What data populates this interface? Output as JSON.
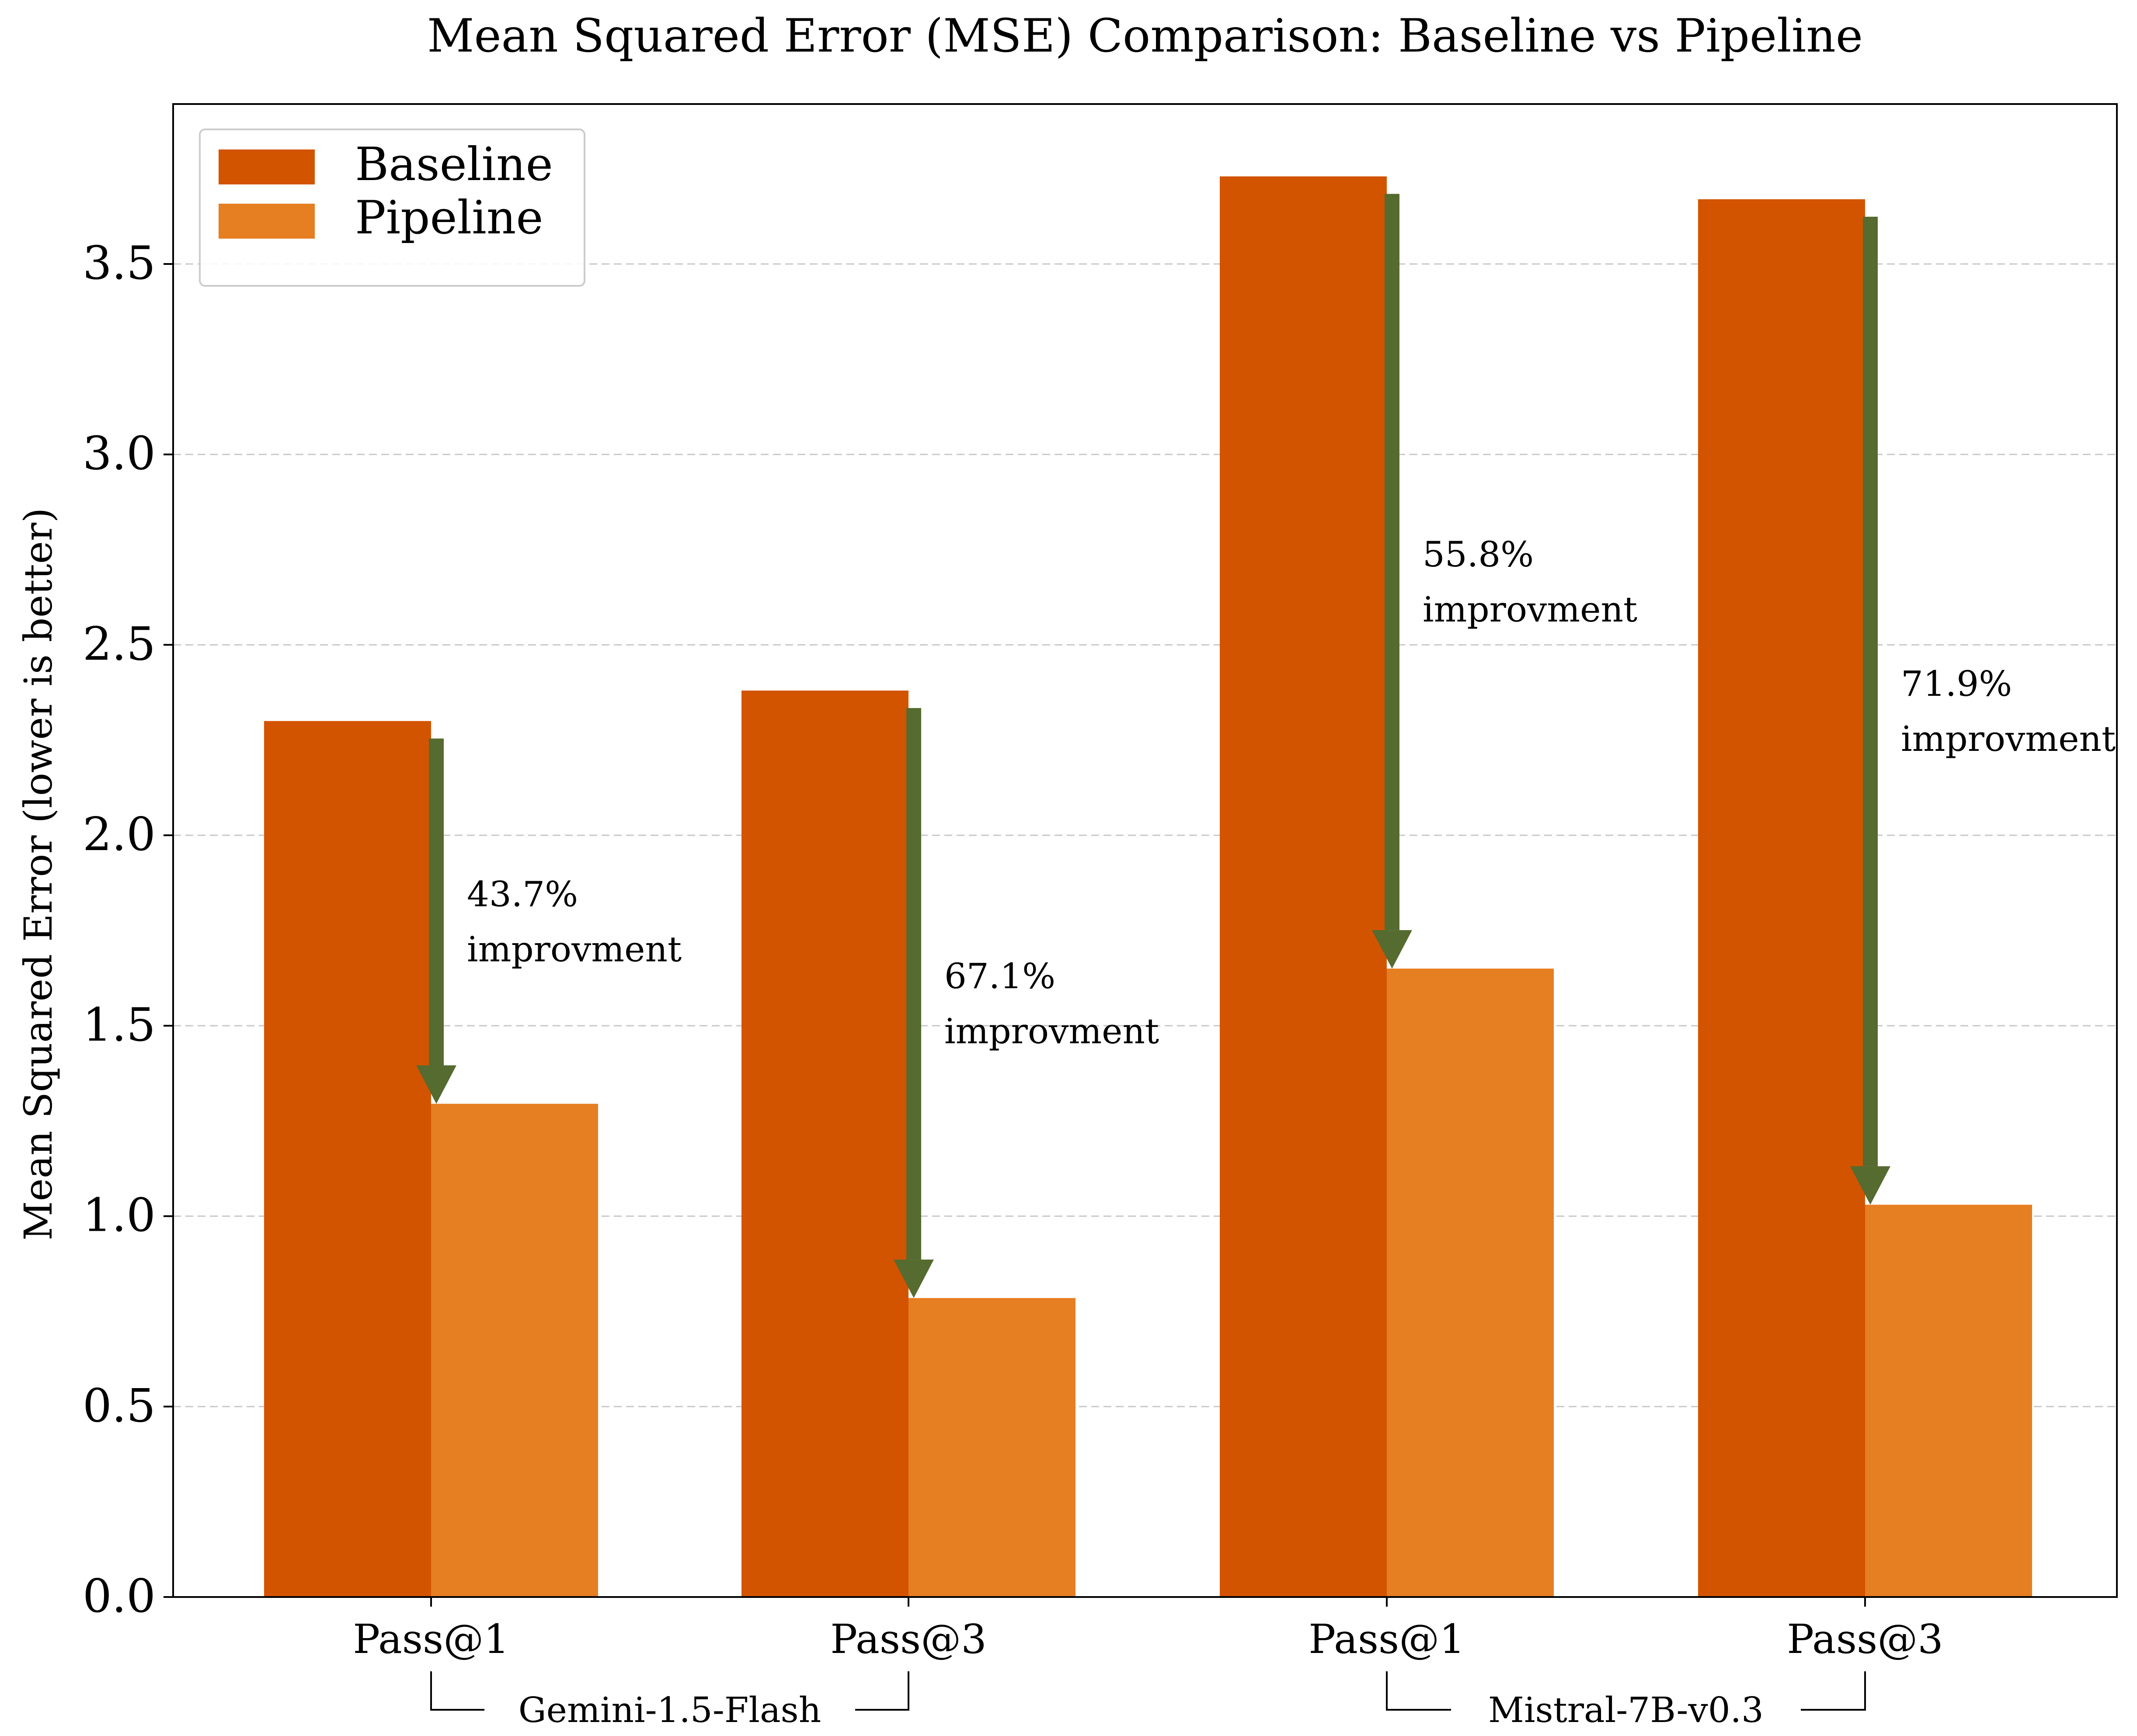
{
  "chart_data": {
    "type": "bar",
    "title": "Mean Squared Error (MSE) Comparison: Baseline vs Pipeline",
    "xlabel": "",
    "ylabel": "Mean Squared Error (lower is better)",
    "ylim": [
      0,
      3.92
    ],
    "yticks": [
      "0.0",
      "0.5",
      "1.0",
      "1.5",
      "2.0",
      "2.5",
      "3.0",
      "3.5"
    ],
    "grid": "y-dashed",
    "legend_position": "top-left",
    "categories": [
      "Pass@1",
      "Pass@3",
      "Pass@1",
      "Pass@3"
    ],
    "groups": [
      {
        "label": "Gemini-1.5-Flash",
        "categories": [
          0,
          1
        ]
      },
      {
        "label": "Mistral-7B-v0.3",
        "categories": [
          2,
          3
        ]
      }
    ],
    "series": [
      {
        "name": "Baseline",
        "color": "#d35400",
        "values": [
          2.3,
          2.38,
          3.73,
          3.67
        ]
      },
      {
        "name": "Pipeline",
        "color": "#e67e22",
        "values": [
          1.295,
          0.785,
          1.65,
          1.03
        ]
      }
    ],
    "annotations": [
      {
        "category": 0,
        "pct": "43.7%",
        "text": "improvment"
      },
      {
        "category": 1,
        "pct": "67.1%",
        "text": "improvment"
      },
      {
        "category": 2,
        "pct": "55.8%",
        "text": "improvment"
      },
      {
        "category": 3,
        "pct": "71.9%",
        "text": "improvment"
      }
    ],
    "arrow_color": "#556b2f"
  }
}
